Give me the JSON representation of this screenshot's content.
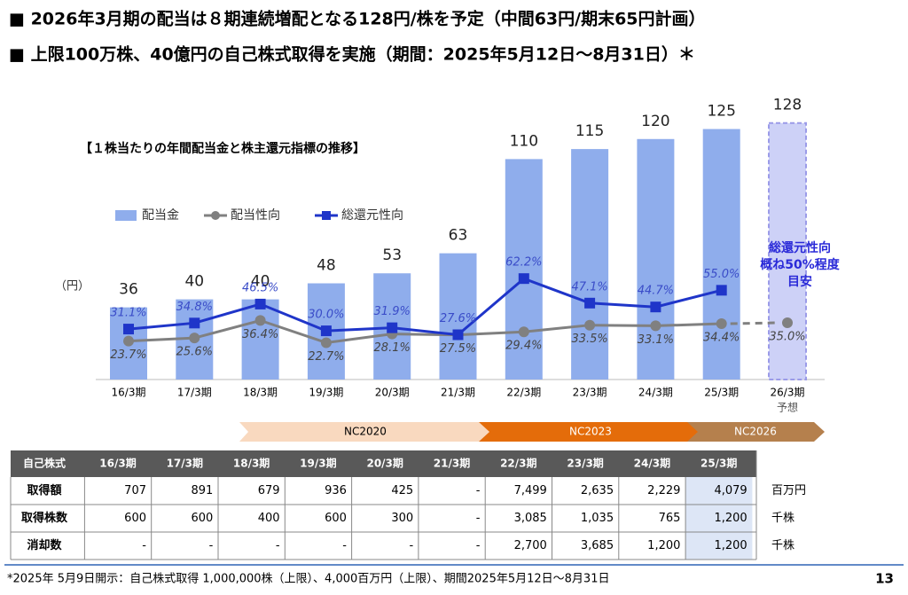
{
  "headlines": [
    "■ 2026年3月期の配当は８期連続増配となる128円/株を予定（中間63円/期末65円計画）",
    "■ 上限100万株、40億円の自己株式取得を実施（期間：2025年5月12日～8月31日）＊"
  ],
  "chart_data": {
    "type": "bar",
    "title": "【１株当たりの年間配当金と株主還元指標の推移】",
    "unit_label": "（円）",
    "categories": [
      "16/3期",
      "17/3期",
      "18/3期",
      "19/3期",
      "20/3期",
      "21/3期",
      "22/3期",
      "23/3期",
      "24/3期",
      "25/3期",
      "26/3期"
    ],
    "category_sublabels": [
      null,
      null,
      null,
      null,
      null,
      null,
      null,
      null,
      null,
      null,
      "予想"
    ],
    "series": [
      {
        "name": "配当金",
        "type": "bar",
        "color": "#8fadec",
        "values": [
          36,
          40,
          40,
          48,
          53,
          63,
          110,
          115,
          120,
          125,
          128
        ]
      },
      {
        "name": "配当性向",
        "type": "line",
        "color": "#808080",
        "values": [
          23.7,
          25.6,
          36.4,
          22.7,
          28.1,
          27.5,
          29.4,
          33.5,
          33.1,
          34.4,
          35.0
        ],
        "value_labels": [
          "23.7%",
          "25.6%",
          "36.4%",
          "22.7%",
          "28.1%",
          "27.5%",
          "29.4%",
          "33.5%",
          "33.1%",
          "34.4%",
          "35.0%"
        ]
      },
      {
        "name": "総還元性向",
        "type": "line",
        "color": "#1f35c9",
        "values": [
          31.1,
          34.8,
          46.5,
          30.0,
          31.9,
          27.6,
          62.2,
          47.1,
          44.7,
          55.0,
          null
        ],
        "value_labels": [
          "31.1%",
          "34.8%",
          "46.5%",
          "30.0%",
          "31.9%",
          "27.6%",
          "62.2%",
          "47.1%",
          "44.7%",
          "55.0%",
          null
        ]
      }
    ],
    "annotation": [
      "総還元性向",
      "概ね50%程度",
      "目安"
    ]
  },
  "phases": [
    "NC2020",
    "NC2023",
    "NC2026"
  ],
  "table": {
    "header": [
      "自己株式",
      "16/3期",
      "17/3期",
      "18/3期",
      "19/3期",
      "20/3期",
      "21/3期",
      "22/3期",
      "23/3期",
      "24/3期",
      "25/3期"
    ],
    "rows": [
      [
        "取得額",
        "707",
        "891",
        "679",
        "936",
        "425",
        "-",
        "7,499",
        "2,635",
        "2,229",
        "4,079"
      ],
      [
        "取得株数",
        "600",
        "600",
        "400",
        "600",
        "300",
        "-",
        "3,085",
        "1,035",
        "765",
        "1,200"
      ],
      [
        "消却数",
        "-",
        "-",
        "-",
        "-",
        "-",
        "-",
        "2,700",
        "3,685",
        "1,200",
        "1,200"
      ]
    ],
    "units": [
      "百万円",
      "千株",
      "千株"
    ]
  },
  "footer": "*2025年 5月9日開示：自己株式取得 1,000,000株（上限）、4,000百万円（上限）、期間2025年5月12日～8月31日",
  "page_number": "13"
}
